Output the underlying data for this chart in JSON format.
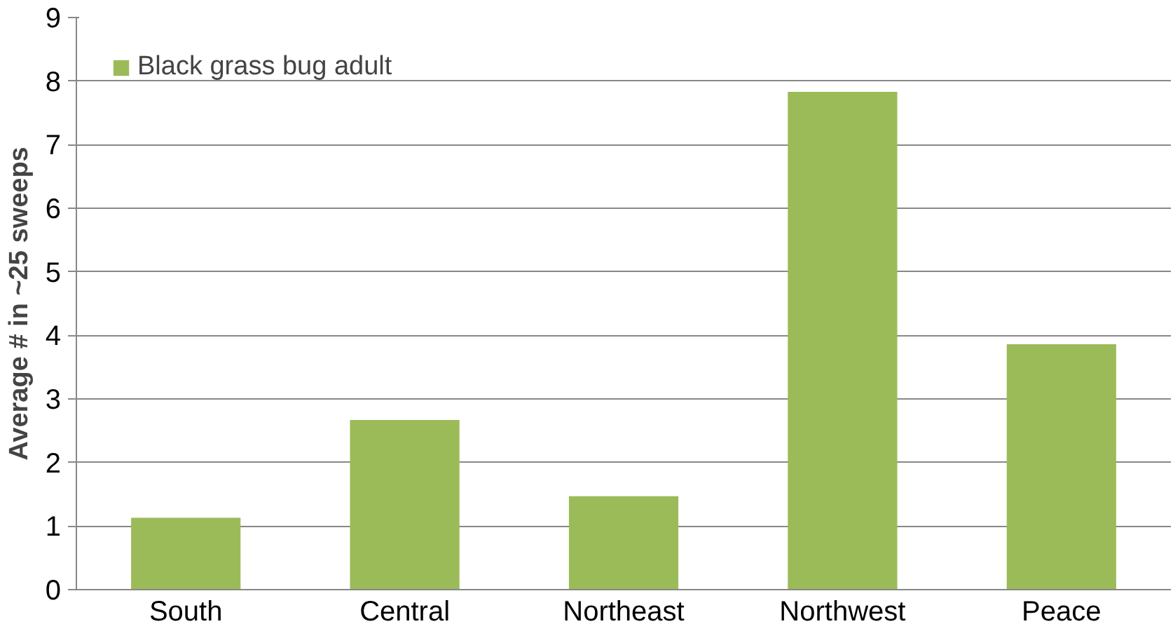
{
  "chart_data": {
    "type": "bar",
    "ylabel": "Average # in ~25 sweeps",
    "categories": [
      "South",
      "Central",
      "Northeast",
      "Northwest",
      "Peace"
    ],
    "series": [
      {
        "name": "Black grass bug adult",
        "color": "#9bbb59",
        "values": [
          1.13,
          2.67,
          1.47,
          7.83,
          3.86
        ]
      }
    ],
    "ylim": [
      0,
      9
    ],
    "yticks": [
      0,
      1,
      2,
      3,
      4,
      5,
      6,
      7,
      8,
      9
    ],
    "grid": "y",
    "legend": "top left"
  }
}
